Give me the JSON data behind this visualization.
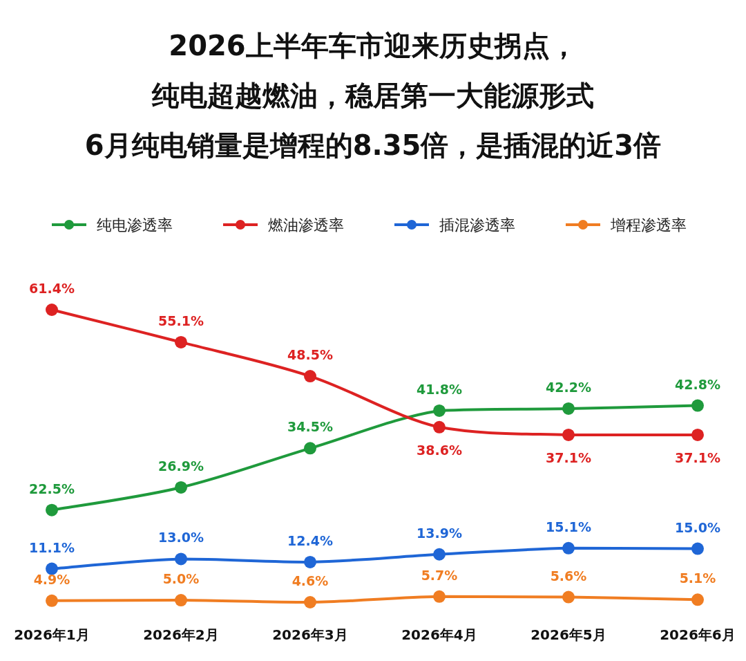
{
  "chart_data": {
    "type": "line",
    "title": "2026上半年车市迎来历史拐点，纯电超越燃油，稳居第一大能源形式",
    "subtitle": "6月纯电销量是增程的8.35倍，是插混的近3倍",
    "categories": [
      "2026年1月",
      "2026年2月",
      "2026年3月",
      "2026年4月",
      "2026年5月",
      "2026年6月"
    ],
    "series": [
      {
        "name": "纯电渗透率",
        "color": "#1f9a3c",
        "values": [
          22.5,
          26.9,
          34.5,
          41.8,
          42.2,
          42.8
        ],
        "value_labels": [
          "22.5%",
          "26.9%",
          "34.5%",
          "41.8%",
          "42.2%",
          "42.8%"
        ]
      },
      {
        "name": "燃油渗透率",
        "color": "#dd2222",
        "values": [
          61.4,
          55.1,
          48.5,
          38.6,
          37.1,
          37.1
        ],
        "value_labels": [
          "61.4%",
          "55.1%",
          "48.5%",
          "38.6%",
          "37.1%",
          "37.1%"
        ]
      },
      {
        "name": "插混渗透率",
        "color": "#1f66d6",
        "values": [
          11.1,
          13.0,
          12.4,
          13.9,
          15.1,
          15.0
        ],
        "value_labels": [
          "11.1%",
          "13.0%",
          "12.4%",
          "13.9%",
          "15.1%",
          "15.0%"
        ]
      },
      {
        "name": "增程渗透率",
        "color": "#f07d22",
        "values": [
          4.9,
          5.0,
          4.6,
          5.7,
          5.6,
          5.1
        ],
        "value_labels": [
          "4.9%",
          "5.0%",
          "4.6%",
          "5.7%",
          "5.6%",
          "5.1%"
        ]
      }
    ],
    "legend": "top",
    "marker": "circle"
  }
}
